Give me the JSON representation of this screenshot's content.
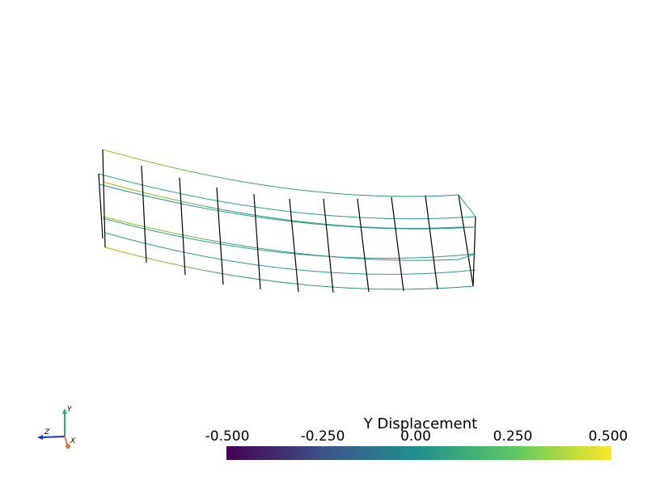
{
  "scalar_bar": {
    "title": "Y Displacement",
    "ticks": [
      "-0.500",
      "-0.250",
      "0.00",
      "0.250",
      "0.500"
    ],
    "range": [
      -0.5,
      0.5
    ],
    "colormap": "viridis",
    "stops": [
      "#440154",
      "#3b528b",
      "#21918c",
      "#5ec962",
      "#fde725"
    ]
  },
  "axes_widget": {
    "x_label": "X",
    "y_label": "Y",
    "z_label": "Z",
    "x_color": "#e8703a",
    "y_color": "#2fae6a",
    "z_color": "#1f2fd0"
  },
  "mesh": {
    "representation": "wireframe",
    "edge_color_rib": "#000000",
    "edge_color_left": "#b9b100",
    "edge_color_mid": "#2a9d8a"
  }
}
